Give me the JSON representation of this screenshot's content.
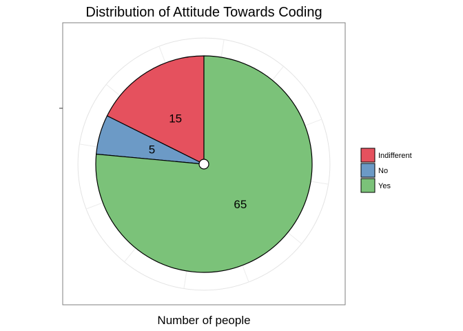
{
  "chart_data": {
    "type": "pie",
    "title": "Distribution of Attitude Towards Coding",
    "xlabel": "Number of people",
    "ylabel": "",
    "categories": [
      "Indifferent",
      "No",
      "Yes"
    ],
    "values": [
      15,
      5,
      65
    ],
    "colors": [
      "#E5515E",
      "#6C9AC6",
      "#7BC279"
    ],
    "legend": {
      "position": "right",
      "entries": [
        "Indifferent",
        "No",
        "Yes"
      ]
    },
    "grid": true,
    "data_labels": [
      "15",
      "5",
      "65"
    ]
  }
}
